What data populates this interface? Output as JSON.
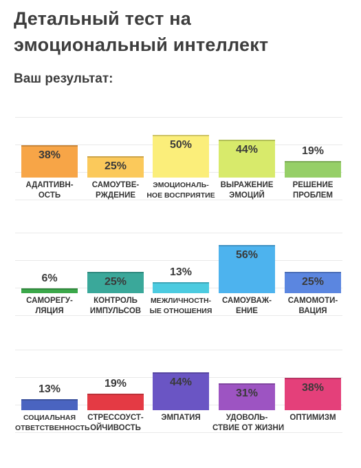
{
  "title_line1": "Детальный тест на",
  "title_line2": "эмоциональный интеллект",
  "subtitle": "Ваш результат:",
  "chart_data": [
    {
      "type": "bar",
      "ylim": [
        0,
        100
      ],
      "bars": [
        {
          "label1": "АДАПТИВН-",
          "label2": "ОСТЬ",
          "value": 38,
          "value_label": "38%",
          "color": "#f7a547"
        },
        {
          "label1": "САМОУТВЕ-",
          "label2": "РЖДЕНИЕ",
          "value": 25,
          "value_label": "25%",
          "color": "#fbc95b"
        },
        {
          "label1": "ЭМОЦИОНАЛЬ-",
          "label2": "НОЕ ВОСПРИЯТИЕ",
          "value": 50,
          "value_label": "50%",
          "color": "#fbee7a"
        },
        {
          "label1": "ВЫРАЖЕНИЕ",
          "label2": "ЭМОЦИЙ",
          "value": 44,
          "value_label": "44%",
          "color": "#d8ea6b"
        },
        {
          "label1": "РЕШЕНИЕ",
          "label2": "ПРОБЛЕМ",
          "value": 19,
          "value_label": "19%",
          "color": "#96cf67"
        }
      ]
    },
    {
      "type": "bar",
      "ylim": [
        0,
        100
      ],
      "bars": [
        {
          "label1": "САМОРЕГУ-",
          "label2": "ЛЯЦИЯ",
          "value": 6,
          "value_label": "6%",
          "color": "#3ba84a"
        },
        {
          "label1": "КОНТРОЛЬ",
          "label2": "ИМПУЛЬСОВ",
          "value": 25,
          "value_label": "25%",
          "color": "#3aa89a"
        },
        {
          "label1": "МЕЖЛИЧНОСТН-",
          "label2": "ЫЕ ОТНОШЕНИЯ",
          "value": 13,
          "value_label": "13%",
          "color": "#4ccbe0"
        },
        {
          "label1": "САМОУВАЖ-",
          "label2": "ЕНИЕ",
          "value": 56,
          "value_label": "56%",
          "color": "#4db3ee"
        },
        {
          "label1": "САМОМОТИ-",
          "label2": "ВАЦИЯ",
          "value": 25,
          "value_label": "25%",
          "color": "#5b86e0"
        }
      ]
    },
    {
      "type": "bar",
      "ylim": [
        0,
        100
      ],
      "bars": [
        {
          "label1": "СОЦИАЛЬНАЯ",
          "label2": "ОТВЕТСТВЕННОСТЬ",
          "value": 13,
          "value_label": "13%",
          "color": "#4a64c0"
        },
        {
          "label1": "СТРЕССОУСТ-",
          "label2": "ОЙЧИВОСТЬ",
          "value": 19,
          "value_label": "19%",
          "color": "#e43a44"
        },
        {
          "label1": "ЭМПАТИЯ",
          "label2": "",
          "value": 44,
          "value_label": "44%",
          "color": "#6a55c4"
        },
        {
          "label1": "УДОВОЛЬ-",
          "label2": "СТВИЕ ОТ ЖИЗНИ",
          "value": 31,
          "value_label": "31%",
          "color": "#9d54c2"
        },
        {
          "label1": "ОПТИМИЗМ",
          "label2": "",
          "value": 38,
          "value_label": "38%",
          "color": "#e4407a"
        }
      ]
    }
  ]
}
